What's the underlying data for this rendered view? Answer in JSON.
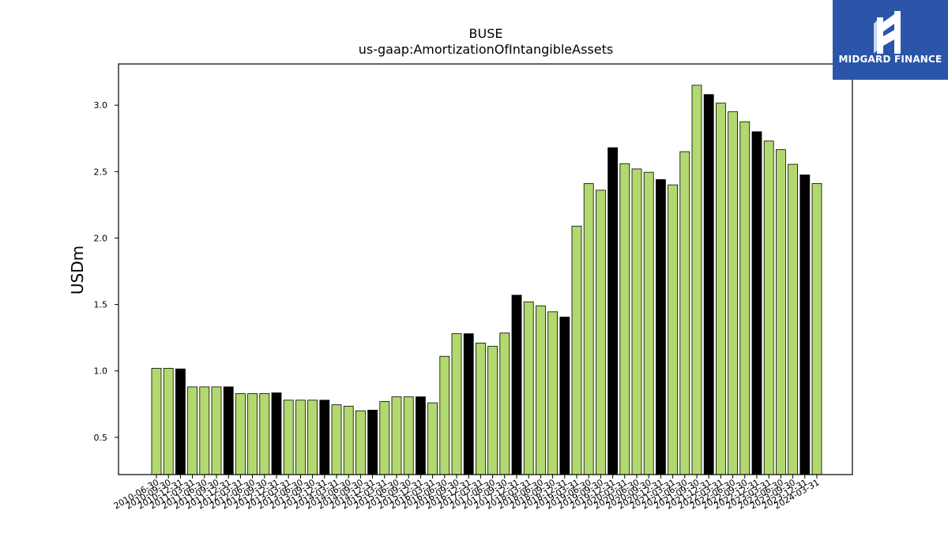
{
  "chart_data": {
    "type": "bar",
    "title": "BUSE",
    "subtitle": "us-gaap:AmortizationOfIntangibleAssets",
    "xlabel": "",
    "ylabel": "USDm",
    "ylim": [
      0.22,
      3.31
    ],
    "yticks": [
      0.5,
      1.0,
      1.5,
      2.0,
      2.5,
      3.0
    ],
    "ytick_labels": [
      "0.5",
      "1.0",
      "1.5",
      "2.0",
      "2.5",
      "3.0"
    ],
    "grid": false,
    "colors": {
      "quarterly": "#b2d96f",
      "annual": "#000000",
      "edge": "#000000"
    },
    "categories": [
      "2010-06-30",
      "2010-09-30",
      "2010-12-31",
      "2011-03-31",
      "2011-06-30",
      "2011-09-30",
      "2011-12-31",
      "2012-03-31",
      "2012-06-30",
      "2012-09-30",
      "2012-12-31",
      "2013-03-31",
      "2013-06-30",
      "2013-09-30",
      "2013-12-31",
      "2014-03-31",
      "2014-06-30",
      "2014-09-30",
      "2014-12-31",
      "2015-03-31",
      "2015-06-30",
      "2015-09-30",
      "2015-12-31",
      "2016-03-31",
      "2016-06-30",
      "2016-09-30",
      "2016-12-31",
      "2017-03-31",
      "2017-06-30",
      "2017-09-30",
      "2017-12-31",
      "2018-03-31",
      "2018-06-30",
      "2018-09-30",
      "2018-12-31",
      "2019-03-31",
      "2019-06-30",
      "2019-09-30",
      "2019-12-31",
      "2020-03-31",
      "2020-06-30",
      "2020-09-30",
      "2020-12-31",
      "2021-03-31",
      "2021-06-30",
      "2021-09-30",
      "2021-12-31",
      "2022-03-31",
      "2022-06-30",
      "2022-09-30",
      "2022-12-31",
      "2023-03-31",
      "2023-06-30",
      "2023-09-30",
      "2023-12-31",
      "2024-03-31"
    ],
    "values": [
      1.02,
      1.02,
      1.015,
      0.88,
      0.88,
      0.88,
      0.88,
      0.83,
      0.83,
      0.83,
      0.835,
      0.78,
      0.78,
      0.78,
      0.78,
      0.745,
      0.735,
      0.7,
      0.705,
      0.77,
      0.805,
      0.805,
      0.805,
      0.76,
      1.11,
      1.28,
      1.28,
      1.21,
      1.185,
      1.285,
      1.57,
      1.52,
      1.49,
      1.445,
      1.405,
      2.09,
      2.41,
      2.36,
      2.68,
      2.56,
      2.52,
      2.495,
      2.44,
      2.4,
      2.65,
      3.15,
      3.08,
      3.015,
      2.95,
      2.875,
      2.8,
      2.73,
      2.665,
      2.555,
      2.475,
      2.41
    ],
    "annual_flags": [
      false,
      false,
      true,
      false,
      false,
      false,
      true,
      false,
      false,
      false,
      true,
      false,
      false,
      false,
      true,
      false,
      false,
      false,
      true,
      false,
      false,
      false,
      true,
      false,
      false,
      false,
      true,
      false,
      false,
      false,
      true,
      false,
      false,
      false,
      true,
      false,
      false,
      false,
      true,
      false,
      false,
      false,
      true,
      false,
      false,
      false,
      true,
      false,
      false,
      false,
      true,
      false,
      false,
      false,
      true,
      false
    ]
  },
  "logo": {
    "text": "MIDGARD FINANCE",
    "background": "#2b55a8",
    "name": "midgard-finance-logo"
  }
}
